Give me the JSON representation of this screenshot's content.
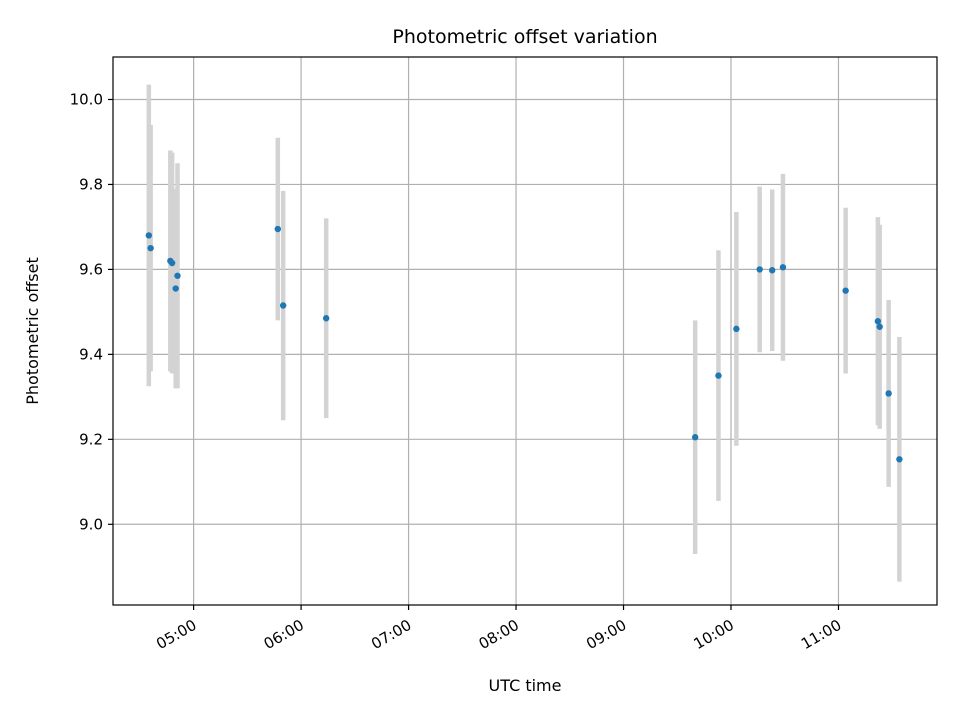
{
  "chart_data": {
    "type": "scatter",
    "title": "Photometric offset variation",
    "xlabel": "UTC time",
    "ylabel": "Photometric offset",
    "grid": true,
    "x_axis": "time",
    "xlim": [
      "04:15",
      "11:55"
    ],
    "ylim": [
      8.81,
      10.1
    ],
    "xticks": [
      "05:00",
      "06:00",
      "07:00",
      "08:00",
      "09:00",
      "10:00",
      "11:00"
    ],
    "yticks": [
      "9.0",
      "9.2",
      "9.4",
      "9.6",
      "9.8",
      "10.0"
    ],
    "series": [
      {
        "point_color": "#1f77b4",
        "errorbar_color": "#d3d3d3",
        "points": [
          {
            "x": "04:35",
            "y": 9.68,
            "err": 0.355
          },
          {
            "x": "04:36",
            "y": 9.65,
            "err": 0.29
          },
          {
            "x": "04:47",
            "y": 9.62,
            "err": 0.26
          },
          {
            "x": "04:48",
            "y": 9.615,
            "err": 0.26
          },
          {
            "x": "04:50",
            "y": 9.555,
            "err": 0.235
          },
          {
            "x": "04:51",
            "y": 9.585,
            "err": 0.265
          },
          {
            "x": "05:47",
            "y": 9.695,
            "err": 0.215
          },
          {
            "x": "05:50",
            "y": 9.515,
            "err": 0.27
          },
          {
            "x": "06:14",
            "y": 9.485,
            "err": 0.235
          },
          {
            "x": "09:40",
            "y": 9.205,
            "err": 0.275
          },
          {
            "x": "09:53",
            "y": 9.35,
            "err": 0.295
          },
          {
            "x": "10:03",
            "y": 9.46,
            "err": 0.275
          },
          {
            "x": "10:16",
            "y": 9.6,
            "err": 0.195
          },
          {
            "x": "10:23",
            "y": 9.598,
            "err": 0.19
          },
          {
            "x": "10:29",
            "y": 9.605,
            "err": 0.22
          },
          {
            "x": "11:04",
            "y": 9.55,
            "err": 0.195
          },
          {
            "x": "11:22",
            "y": 9.478,
            "err": 0.245
          },
          {
            "x": "11:23",
            "y": 9.465,
            "err": 0.24
          },
          {
            "x": "11:28",
            "y": 9.308,
            "err": 0.22
          },
          {
            "x": "11:34",
            "y": 9.153,
            "err": 0.288
          }
        ]
      }
    ]
  }
}
